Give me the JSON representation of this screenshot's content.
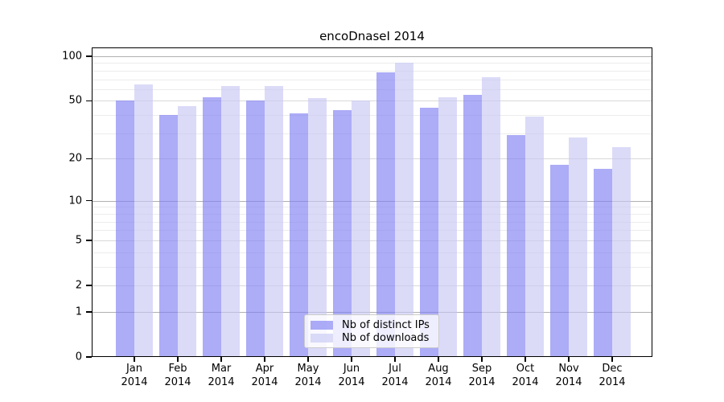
{
  "chart_data": {
    "type": "bar",
    "title": "encoDnaseI 2014",
    "year": "2014",
    "categories": [
      "Jan",
      "Feb",
      "Mar",
      "Apr",
      "May",
      "Jun",
      "Jul",
      "Aug",
      "Sep",
      "Oct",
      "Nov",
      "Dec"
    ],
    "series": [
      {
        "key": "distinct-ips",
        "name": "Nb of distinct IPs",
        "color": "#7f7ff3",
        "values": [
          50,
          40,
          53,
          50,
          41,
          43,
          78,
          45,
          55,
          29,
          18,
          17
        ]
      },
      {
        "key": "downloads",
        "name": "Nb of downloads",
        "color": "#c7c7f4",
        "values": [
          65,
          46,
          63,
          63,
          52,
          50,
          91,
          53,
          72,
          39,
          28,
          24
        ]
      }
    ],
    "bar_alpha": 0.65,
    "y_axis": {
      "scale": "log1p",
      "ticks": [
        100,
        50,
        20,
        10,
        5,
        2,
        1,
        0
      ],
      "major_gridlines": [
        1,
        10,
        100
      ],
      "medium_gridlines": [
        2,
        5,
        20,
        50
      ],
      "minor_gridlines": [
        3,
        4,
        6,
        7,
        8,
        9,
        30,
        40,
        60,
        70,
        80,
        90
      ],
      "range": [
        0,
        115
      ]
    },
    "legend": {
      "position": "lower-center",
      "entries": [
        "Nb of distinct IPs",
        "Nb of downloads"
      ]
    },
    "grid": true,
    "colors": {
      "grid_major": "#b0b0b0",
      "grid_medium": "#d9d9d9",
      "grid_minor": "#ececec",
      "axis": "#000000",
      "legend_border": "#cccccc",
      "legend_background": "rgba(255,255,255,0.8)",
      "background": "#ffffff"
    }
  }
}
